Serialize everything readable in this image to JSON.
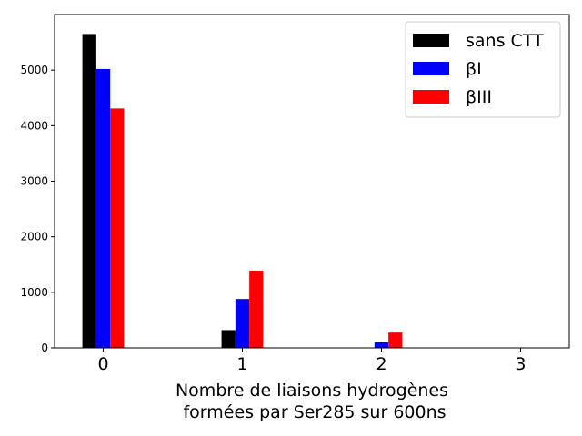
{
  "chart_data": {
    "type": "bar",
    "categories": [
      "0",
      "1",
      "2",
      "3"
    ],
    "x": [
      0,
      1,
      2,
      3
    ],
    "series": [
      {
        "name": "sans CTT",
        "color": "#000000",
        "values": [
          5650,
          320,
          0,
          0
        ]
      },
      {
        "name": "βI",
        "color": "#0000ff",
        "values": [
          5020,
          880,
          100,
          0
        ]
      },
      {
        "name": "βIII",
        "color": "#ff0000",
        "values": [
          4310,
          1390,
          275,
          0
        ]
      }
    ],
    "title": "",
    "xlabel": "Nombre de liaisons hydrogènes\n formées par Ser285 sur 600ns",
    "ylabel": "",
    "yticks": [
      "0",
      "1000",
      "2000",
      "3000",
      "4000",
      "5000"
    ],
    "ylim": [
      0,
      6000
    ],
    "xlim": [
      -0.35,
      3.35
    ],
    "legend_position": "top-right",
    "grid": false
  }
}
